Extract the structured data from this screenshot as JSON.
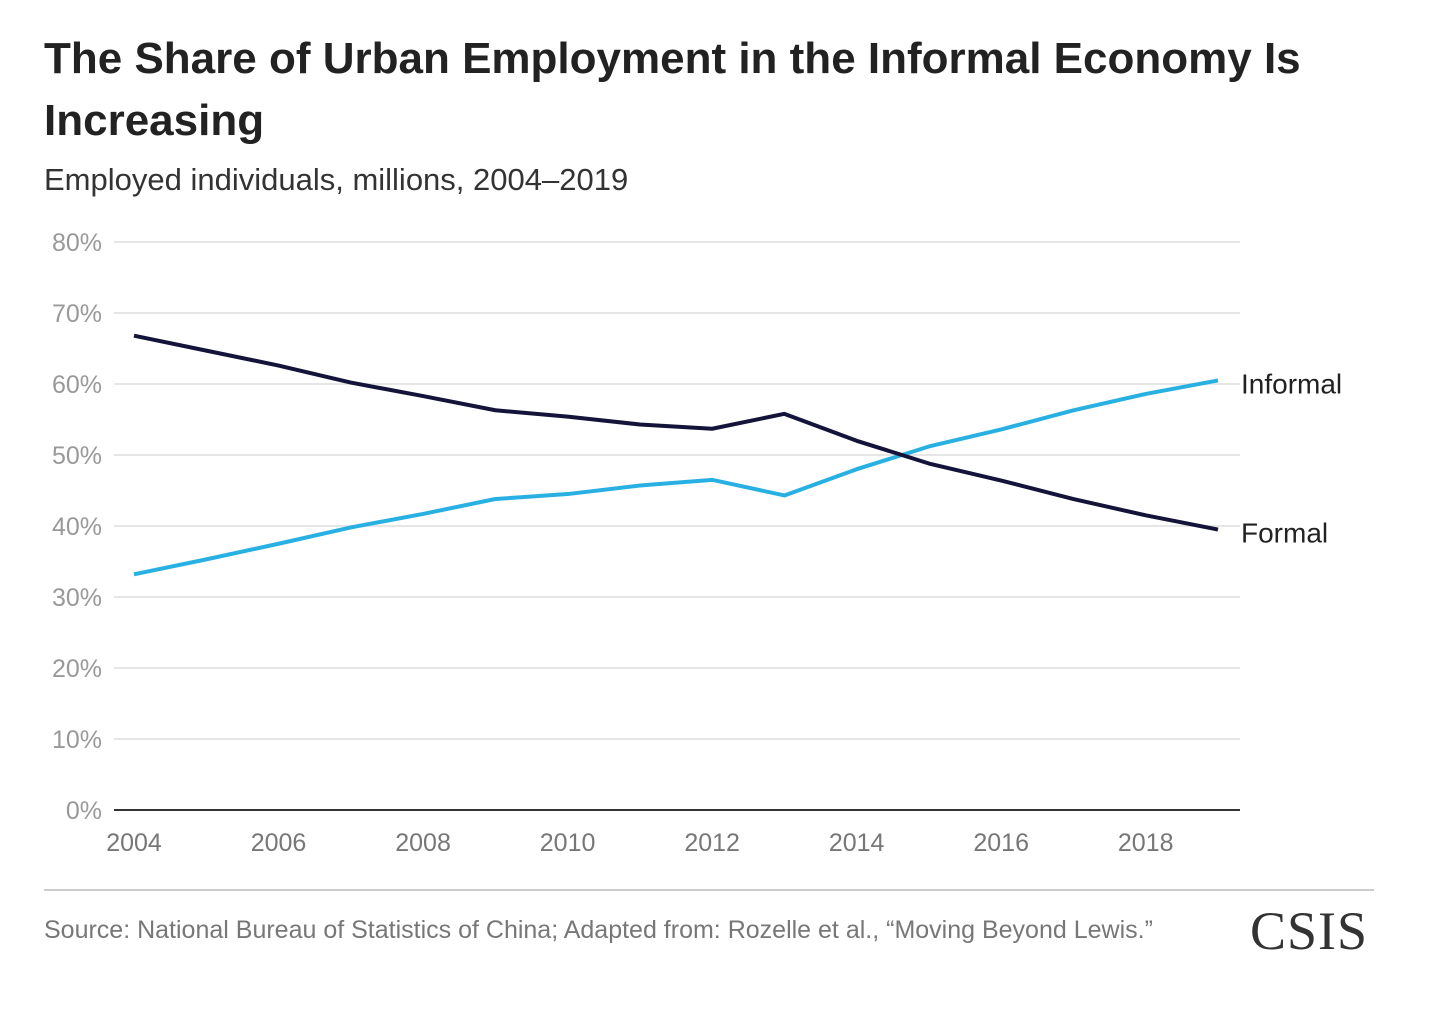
{
  "chart_data": {
    "type": "line",
    "title": "The Share of Urban Employment in the Informal Economy Is Increasing",
    "subtitle": "Employed individuals, millions, 2004–2019",
    "xlabel": "",
    "ylabel": "",
    "x": [
      2004,
      2005,
      2006,
      2007,
      2008,
      2009,
      2010,
      2011,
      2012,
      2013,
      2014,
      2015,
      2016,
      2017,
      2018,
      2019
    ],
    "xticks": [
      "2004",
      "2006",
      "2008",
      "2010",
      "2012",
      "2014",
      "2016",
      "2018"
    ],
    "yticks": [
      "0%",
      "10%",
      "20%",
      "30%",
      "40%",
      "50%",
      "60%",
      "70%",
      "80%"
    ],
    "ylim": [
      0,
      80
    ],
    "grid": true,
    "series": [
      {
        "name": "Informal",
        "color": "#29b0e3",
        "values": [
          33.2,
          35.3,
          37.5,
          39.8,
          41.7,
          43.8,
          44.5,
          45.7,
          46.5,
          44.3,
          48.0,
          51.2,
          53.6,
          56.3,
          58.6,
          60.5
        ]
      },
      {
        "name": "Formal",
        "color": "#14143a",
        "values": [
          66.8,
          64.7,
          62.6,
          60.2,
          58.3,
          56.3,
          55.4,
          54.3,
          53.7,
          55.8,
          52.0,
          48.8,
          46.4,
          43.8,
          41.5,
          39.5
        ]
      }
    ]
  },
  "source": "Source: National Bureau of Statistics of China; Adapted from: Rozelle et al., “Moving Beyond Lewis.”",
  "logo": "CSIS"
}
